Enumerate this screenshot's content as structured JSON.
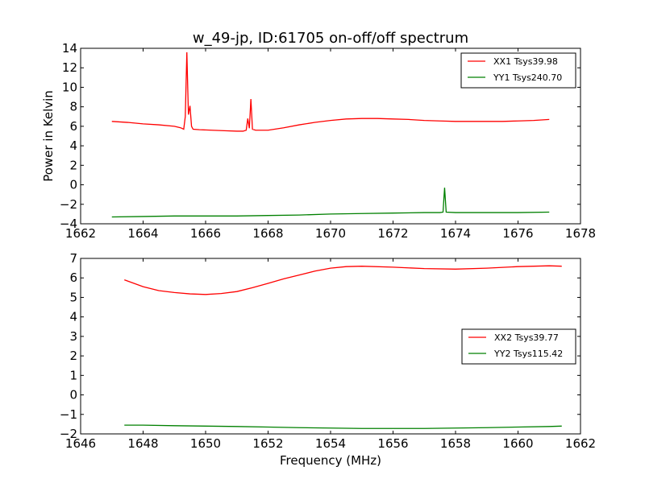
{
  "chart_data": [
    {
      "type": "line",
      "title": "w_49-jp, ID:61705 on-off/off spectrum",
      "xlabel": "",
      "ylabel": "Power in Kelvin",
      "xlim": [
        1662,
        1678
      ],
      "ylim": [
        -4,
        14
      ],
      "xticks": [
        1662,
        1664,
        1666,
        1668,
        1670,
        1672,
        1674,
        1676,
        1678
      ],
      "yticks": [
        -4,
        -2,
        0,
        2,
        4,
        6,
        8,
        10,
        12,
        14
      ],
      "legend_position": "top-right",
      "series": [
        {
          "name": "XX1 Tsys39.98",
          "color": "#ff0000",
          "x": [
            1663.0,
            1663.5,
            1664.0,
            1664.5,
            1665.0,
            1665.2,
            1665.3,
            1665.35,
            1665.4,
            1665.45,
            1665.5,
            1665.55,
            1665.6,
            1665.8,
            1666.2,
            1666.6,
            1667.0,
            1667.2,
            1667.3,
            1667.35,
            1667.4,
            1667.45,
            1667.5,
            1667.6,
            1668.0,
            1668.5,
            1669.0,
            1669.5,
            1670.0,
            1670.5,
            1671.0,
            1671.5,
            1672.0,
            1672.5,
            1673.0,
            1673.5,
            1674.0,
            1674.5,
            1675.0,
            1675.5,
            1676.0,
            1676.5,
            1677.0
          ],
          "y": [
            6.5,
            6.4,
            6.25,
            6.15,
            6.0,
            5.85,
            5.7,
            7.0,
            13.6,
            7.2,
            8.1,
            6.0,
            5.7,
            5.65,
            5.6,
            5.55,
            5.5,
            5.5,
            5.6,
            6.8,
            5.8,
            8.8,
            5.7,
            5.6,
            5.6,
            5.85,
            6.15,
            6.4,
            6.6,
            6.75,
            6.8,
            6.8,
            6.75,
            6.7,
            6.6,
            6.55,
            6.5,
            6.5,
            6.5,
            6.5,
            6.55,
            6.6,
            6.7
          ]
        },
        {
          "name": "YY1 Tsys240.70",
          "color": "#008000",
          "x": [
            1663.0,
            1664.0,
            1665.0,
            1666.0,
            1667.0,
            1668.0,
            1669.0,
            1670.0,
            1671.0,
            1672.0,
            1673.0,
            1673.5,
            1673.6,
            1673.65,
            1673.7,
            1674.0,
            1675.0,
            1676.0,
            1677.0
          ],
          "y": [
            -3.3,
            -3.25,
            -3.2,
            -3.2,
            -3.2,
            -3.15,
            -3.1,
            -3.0,
            -2.95,
            -2.9,
            -2.85,
            -2.85,
            -2.8,
            -0.3,
            -2.8,
            -2.85,
            -2.85,
            -2.85,
            -2.8
          ]
        }
      ]
    },
    {
      "type": "line",
      "title": "",
      "xlabel": "Frequency (MHz)",
      "ylabel": "",
      "xlim": [
        1646,
        1662
      ],
      "ylim": [
        -2,
        7
      ],
      "xticks": [
        1646,
        1648,
        1650,
        1652,
        1654,
        1656,
        1658,
        1660,
        1662
      ],
      "yticks": [
        -2,
        -1,
        0,
        1,
        2,
        3,
        4,
        5,
        6,
        7
      ],
      "legend_position": "center-right",
      "series": [
        {
          "name": "XX2 Tsys39.77",
          "color": "#ff0000",
          "x": [
            1647.4,
            1648.0,
            1648.5,
            1649.0,
            1649.5,
            1650.0,
            1650.5,
            1651.0,
            1651.5,
            1652.0,
            1652.5,
            1653.0,
            1653.5,
            1654.0,
            1654.5,
            1655.0,
            1656.0,
            1657.0,
            1658.0,
            1659.0,
            1660.0,
            1661.0,
            1661.4
          ],
          "y": [
            5.9,
            5.55,
            5.35,
            5.25,
            5.18,
            5.15,
            5.2,
            5.3,
            5.5,
            5.72,
            5.95,
            6.15,
            6.35,
            6.5,
            6.58,
            6.6,
            6.55,
            6.48,
            6.45,
            6.5,
            6.58,
            6.62,
            6.6
          ]
        },
        {
          "name": "YY2 Tsys115.42",
          "color": "#008000",
          "x": [
            1647.4,
            1648.0,
            1649.0,
            1650.0,
            1651.0,
            1652.0,
            1653.0,
            1654.0,
            1655.0,
            1656.0,
            1657.0,
            1658.0,
            1659.0,
            1660.0,
            1661.0,
            1661.4
          ],
          "y": [
            -1.55,
            -1.55,
            -1.58,
            -1.6,
            -1.62,
            -1.65,
            -1.68,
            -1.7,
            -1.72,
            -1.72,
            -1.72,
            -1.7,
            -1.68,
            -1.65,
            -1.62,
            -1.6
          ]
        }
      ]
    }
  ]
}
